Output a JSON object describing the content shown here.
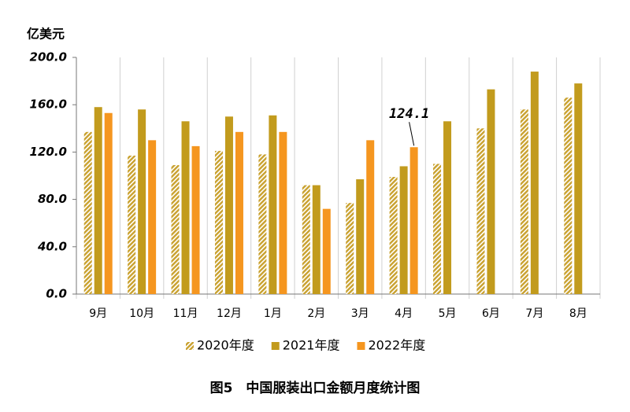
{
  "chart_data": {
    "type": "bar",
    "title": "图5　中国服装出口金额月度统计图",
    "y_label": "亿美元",
    "categories": [
      "9月",
      "10月",
      "11月",
      "12月",
      "1月",
      "2月",
      "3月",
      "4月",
      "5月",
      "6月",
      "7月",
      "8月"
    ],
    "series": [
      {
        "name": "2020年度",
        "color": "#c9a12e",
        "hatch": true,
        "values": [
          137,
          117,
          109,
          121,
          118,
          92,
          77,
          99,
          110,
          140,
          156,
          166
        ]
      },
      {
        "name": "2021年度",
        "color": "#c29b1d",
        "hatch": false,
        "values": [
          158,
          156,
          146,
          150,
          151,
          92,
          97,
          108,
          146,
          173,
          188,
          178
        ]
      },
      {
        "name": "2022年度",
        "color": "#f5961f",
        "hatch": false,
        "values": [
          153,
          130,
          125,
          137,
          137,
          72,
          130,
          124.1,
          null,
          null,
          null,
          null
        ]
      }
    ],
    "annotations": [
      {
        "series": 2,
        "index": 7
      }
    ],
    "ylim": [
      0,
      200
    ],
    "yticks": [
      {
        "value": 0,
        "label": "0.0"
      },
      {
        "value": 40,
        "label": "40.0"
      },
      {
        "value": 80,
        "label": "80.0"
      },
      {
        "value": 120,
        "label": "120.0"
      },
      {
        "value": 160,
        "label": "160.0"
      },
      {
        "value": 200,
        "label": "200.0"
      }
    ],
    "legend": "bottom"
  }
}
